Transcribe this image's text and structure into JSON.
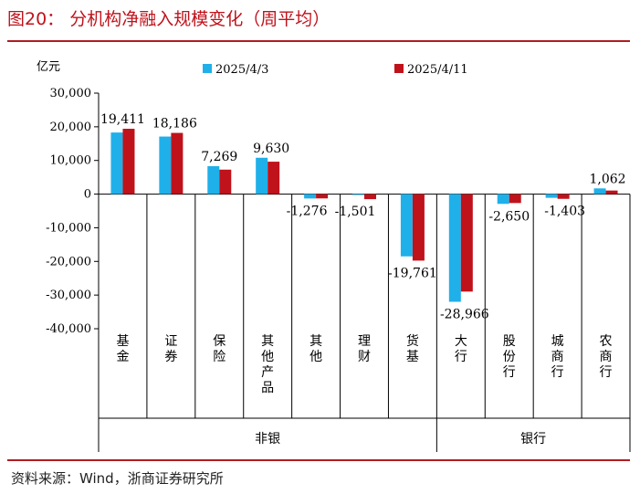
{
  "figure": {
    "title": "图20：  分机构净融入规模变化（周平均）",
    "source": "资料来源：Wind，浙商证券研究所",
    "unit": "亿元"
  },
  "colors": {
    "series1": "#1fb0ea",
    "series2": "#c0121b",
    "accent": "#b01c24"
  },
  "chart_data": {
    "type": "bar",
    "ylim": [
      -40000,
      30000
    ],
    "yticks": [
      30000,
      20000,
      10000,
      0,
      -10000,
      -20000,
      -30000,
      -40000
    ],
    "ytick_labels": [
      "30,000",
      "20,000",
      "10,000",
      "0",
      "-10,000",
      "-20,000",
      "-30,000",
      "-40,000"
    ],
    "ylabel": "亿元",
    "legend_position": "top",
    "grid": false,
    "categories": [
      "基金",
      "证券",
      "保险",
      "其他产品",
      "其他",
      "理财",
      "货基",
      "大行",
      "股份行",
      "城商行",
      "农商行"
    ],
    "groups": [
      {
        "label": "非银",
        "categories": [
          "基金",
          "证券",
          "保险",
          "其他产品",
          "其他",
          "理财",
          "货基"
        ]
      },
      {
        "label": "银行",
        "categories": [
          "大行",
          "股份行",
          "城商行",
          "农商行"
        ]
      }
    ],
    "series": [
      {
        "name": "2025/4/3",
        "values": [
          18300,
          17100,
          8300,
          10800,
          -1300,
          -100,
          -18500,
          -32000,
          -2900,
          -1100,
          1700
        ]
      },
      {
        "name": "2025/4/11",
        "values": [
          19411,
          18186,
          7269,
          9630,
          -1276,
          -1501,
          -19761,
          -28966,
          -2650,
          -1403,
          1062
        ]
      }
    ],
    "data_labels": [
      "19,411",
      "18,186",
      "7,269",
      "9,630",
      "-1,276",
      "-1,501",
      "-19,761",
      "-28,966",
      "-2,650",
      "-1,403",
      "1,062"
    ]
  }
}
